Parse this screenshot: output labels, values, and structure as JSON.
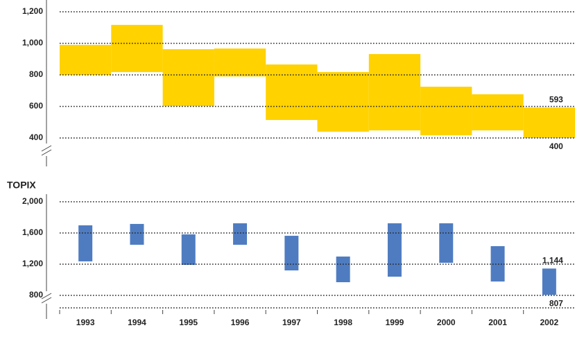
{
  "chart_data": [
    {
      "type": "range-bar",
      "color": "#ffd200",
      "values": [
        [
          800,
          990
        ],
        [
          818,
          1117
        ],
        [
          602,
          963
        ],
        [
          790,
          967
        ],
        [
          514,
          866
        ],
        [
          440,
          818
        ],
        [
          448,
          932
        ],
        [
          417,
          725
        ],
        [
          448,
          677
        ],
        [
          400,
          593
        ]
      ],
      "ylim": [
        400,
        1200
      ],
      "yticks": [
        400,
        600,
        800,
        {
          "value": 1000,
          "label": "1,000"
        },
        {
          "value": 1200,
          "label": "1,200"
        }
      ],
      "grid": true
    },
    {
      "type": "range-bar",
      "color": "#4f7cc1",
      "ylabel": "TOPIX",
      "categories": [
        "1993",
        "1994",
        "1995",
        "1996",
        "1997",
        "1998",
        "1999",
        "2000",
        "2001",
        "2002"
      ],
      "values": [
        [
          1236,
          1698
        ],
        [
          1449,
          1716
        ],
        [
          1191,
          1582
        ],
        [
          1449,
          1724
        ],
        [
          1120,
          1564
        ],
        [
          969,
          1298
        ],
        [
          1040,
          1724
        ],
        [
          1218,
          1724
        ],
        [
          978,
          1431
        ],
        [
          807,
          1144
        ]
      ],
      "value_labels": [
        null,
        null,
        null,
        null,
        null,
        null,
        null,
        null,
        null,
        [
          "807",
          "1,144"
        ]
      ],
      "ylim": [
        800,
        2000
      ],
      "yticks": [
        800,
        {
          "value": 1200,
          "label": "1,200"
        },
        {
          "value": 1600,
          "label": "1,600"
        },
        {
          "value": 2000,
          "label": "2,000"
        }
      ],
      "grid": true
    }
  ]
}
